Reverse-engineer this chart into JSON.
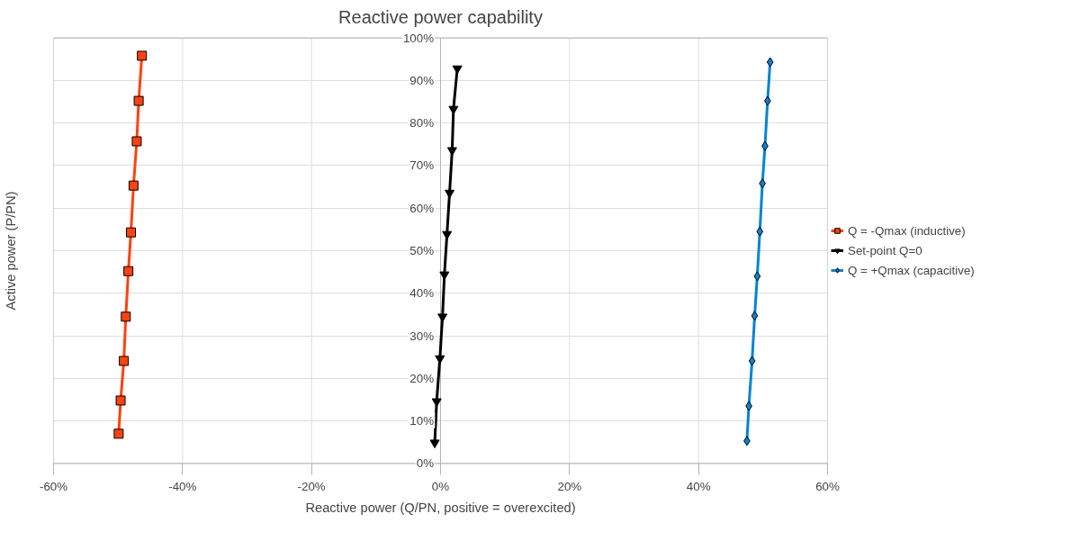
{
  "chart_data": {
    "type": "line",
    "title": "Reactive power capability",
    "xlabel": "Reactive power (Q/PN, positive = overexcited)",
    "ylabel": "Active power (P/PN)",
    "xlim": [
      -60,
      60
    ],
    "ylim": [
      0,
      100
    ],
    "xticks": [
      {
        "value": -60,
        "label": "-60%"
      },
      {
        "value": -40,
        "label": "-40%"
      },
      {
        "value": -20,
        "label": "-20%"
      },
      {
        "value": 0,
        "label": "0%"
      },
      {
        "value": 20,
        "label": "20%"
      },
      {
        "value": 40,
        "label": "40%"
      },
      {
        "value": 60,
        "label": "60%"
      }
    ],
    "yticks": [
      {
        "value": 0,
        "label": "0%"
      },
      {
        "value": 10,
        "label": "10%"
      },
      {
        "value": 20,
        "label": "20%"
      },
      {
        "value": 30,
        "label": "30%"
      },
      {
        "value": 40,
        "label": "40%"
      },
      {
        "value": 50,
        "label": "50%"
      },
      {
        "value": 60,
        "label": "60%"
      },
      {
        "value": 70,
        "label": "70%"
      },
      {
        "value": 80,
        "label": "80%"
      },
      {
        "value": 90,
        "label": "90%"
      },
      {
        "value": 100,
        "label": "100%"
      }
    ],
    "grid": true,
    "legend": "right",
    "series": [
      {
        "name": "Q = -Qmax (inductive)",
        "color": "#ff420e",
        "marker": "square",
        "x": [
          -46.3,
          -46.8,
          -47.1,
          -47.6,
          -48.0,
          -48.4,
          -48.8,
          -49.1,
          -49.6,
          -49.9
        ],
        "values": [
          95.8,
          85.2,
          75.7,
          65.3,
          54.3,
          45.2,
          34.5,
          24.1,
          14.8,
          7.0
        ]
      },
      {
        "name": "Set-point Q=0",
        "color": "#000000",
        "marker": "triangle",
        "x": [
          2.6,
          2.0,
          1.8,
          1.4,
          1.0,
          0.6,
          0.3,
          -0.1,
          -0.6,
          -0.9
        ],
        "values": [
          92.8,
          83.3,
          73.6,
          63.6,
          53.9,
          44.4,
          34.5,
          24.7,
          14.6,
          4.9
        ]
      },
      {
        "name": "Q = +Qmax (capacitive)",
        "color": "#0084d1",
        "marker": "diamond",
        "x": [
          51.1,
          50.7,
          50.3,
          49.9,
          49.5,
          49.1,
          48.7,
          48.3,
          47.8,
          47.5
        ],
        "values": [
          94.3,
          85.2,
          74.6,
          65.8,
          54.5,
          44.0,
          34.7,
          24.1,
          13.5,
          5.3
        ]
      }
    ]
  }
}
